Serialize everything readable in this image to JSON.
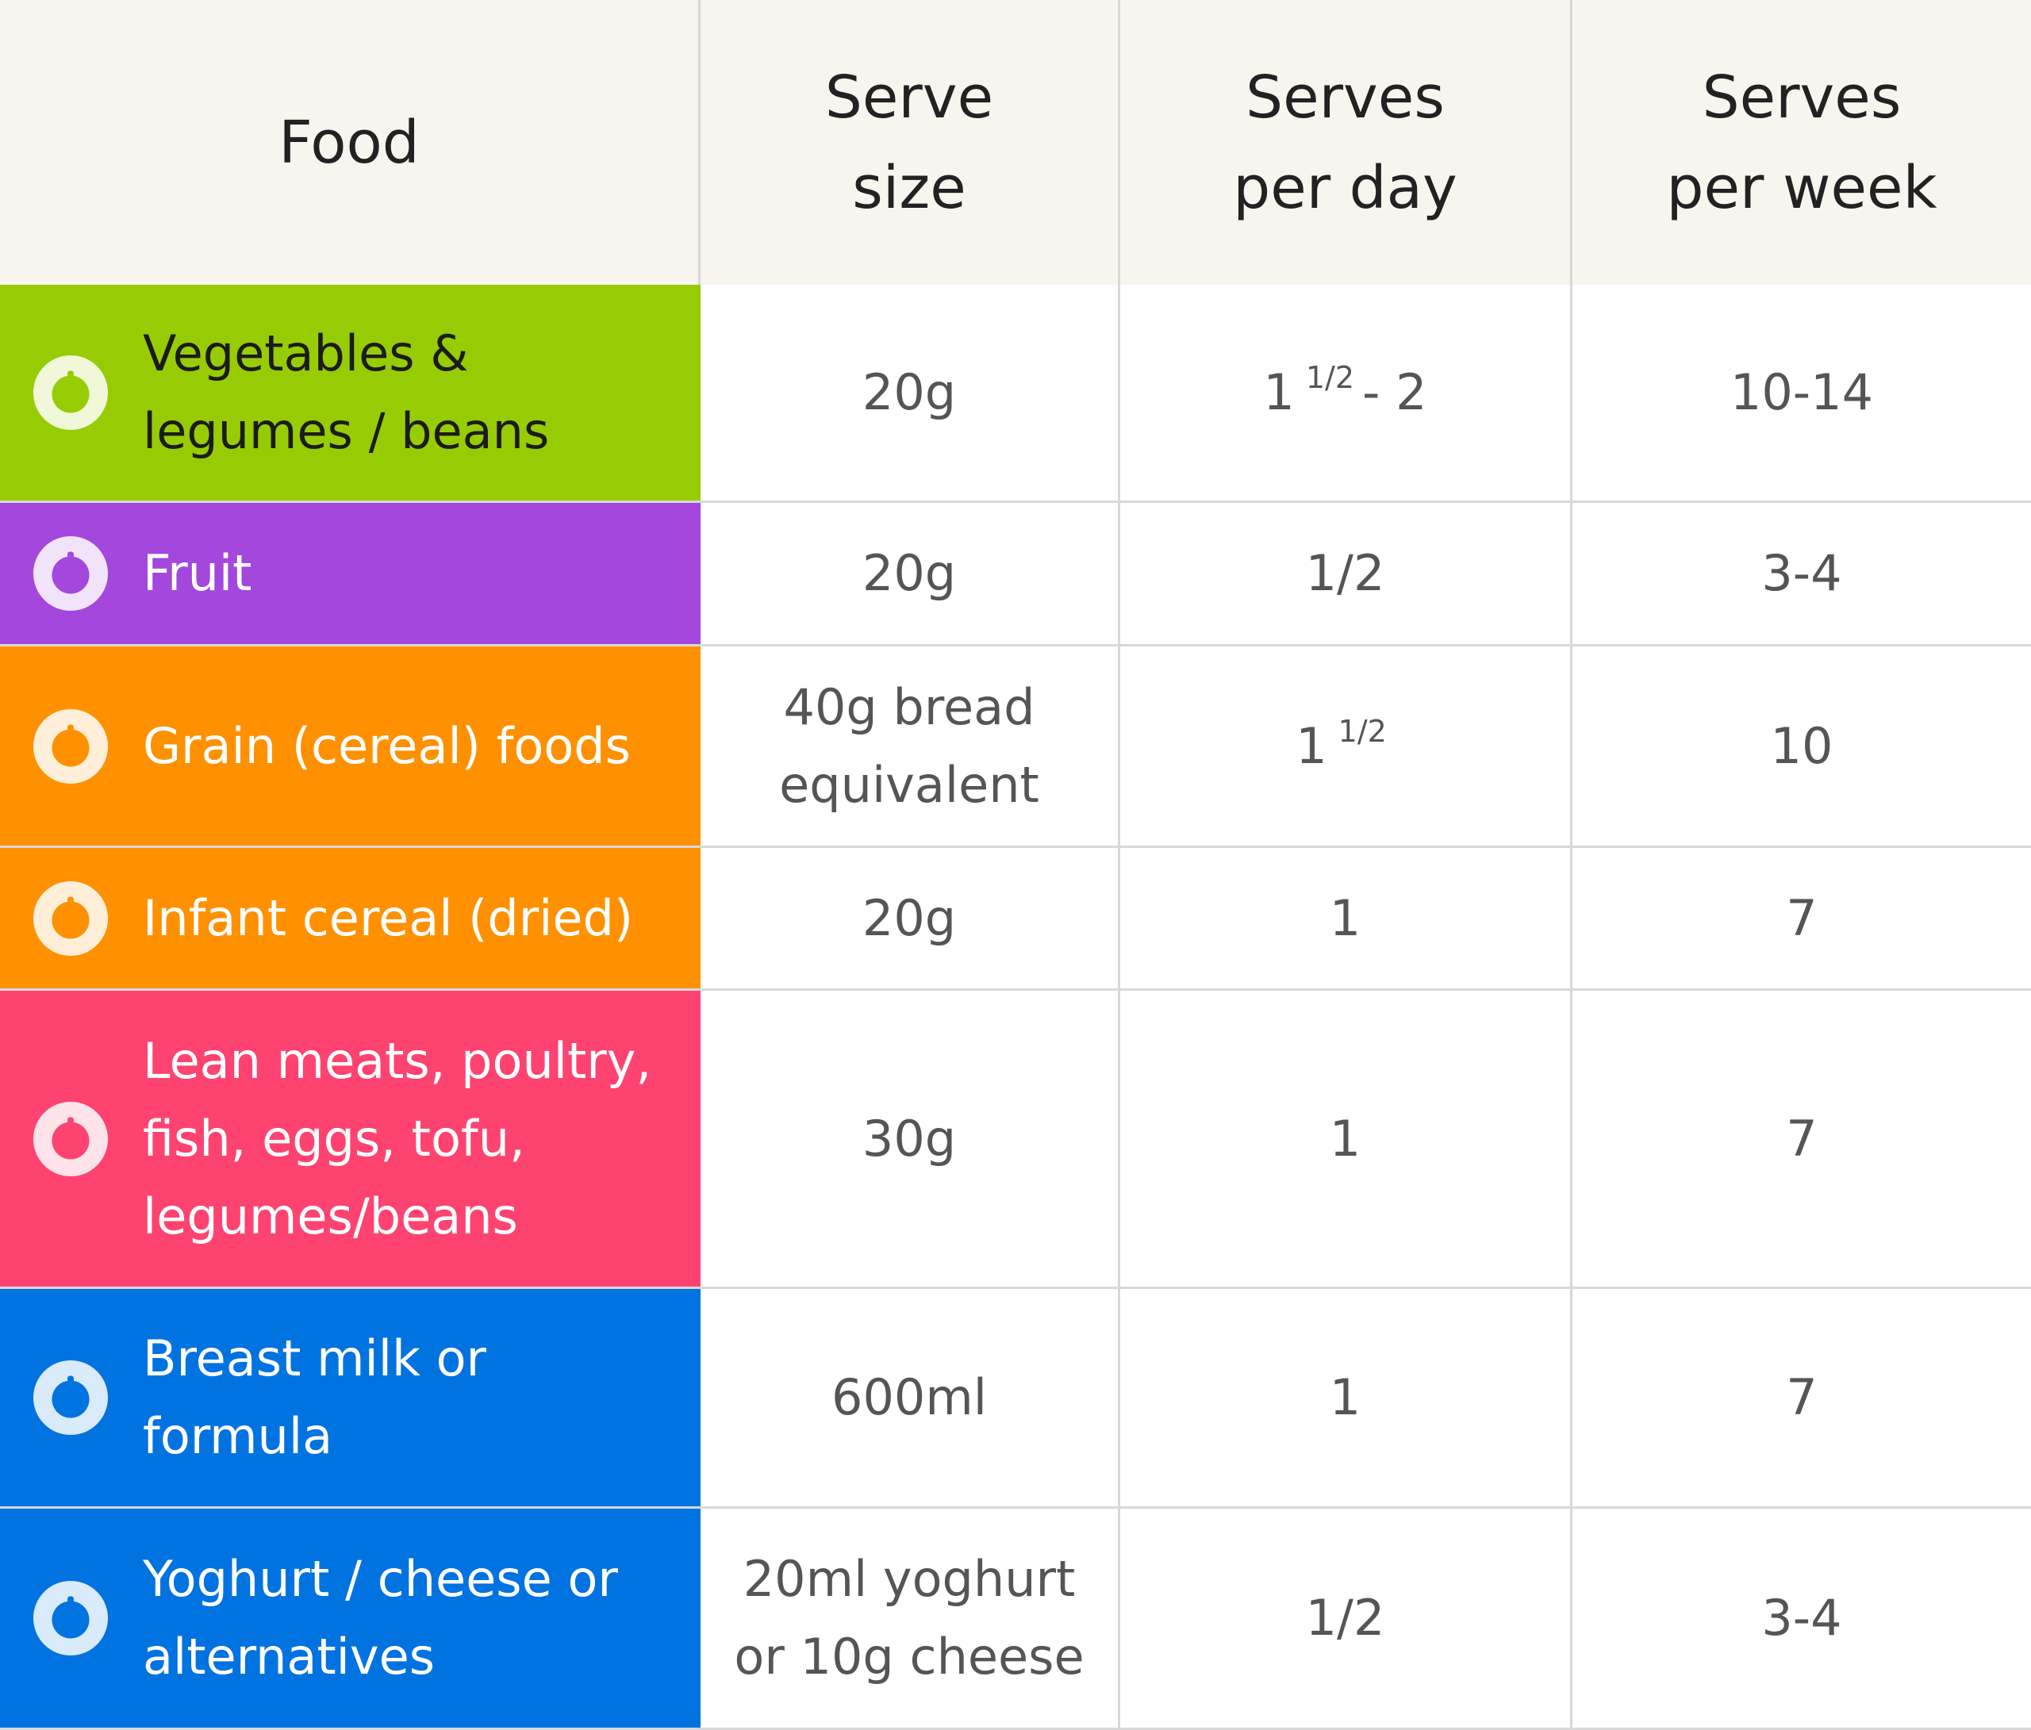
{
  "table": {
    "header": [
      "Food",
      "Serve size",
      "Serves per day",
      "Serves per week"
    ],
    "rows": [
      {
        "food": "Vegetables & legumes / beans",
        "color": "#97cc04",
        "serve_size": "20g",
        "per_day": {
          "whole": "1",
          "fraction": "1/2",
          "rest": "- 2"
        },
        "per_week": "10-14"
      },
      {
        "food": "Fruit",
        "color": "#a347dd",
        "serve_size": "20g",
        "per_day": "1/2",
        "per_week": "3-4"
      },
      {
        "food": "Grain (cereal) foods",
        "color": "#ff9100",
        "serve_size": "40g bread equivalent",
        "per_day": {
          "whole": "1",
          "fraction": "1/2"
        },
        "per_week": "10"
      },
      {
        "food": "Infant cereal (dried)",
        "color": "#ff9100",
        "serve_size": "20g",
        "per_day": "1",
        "per_week": "7"
      },
      {
        "food": "Lean meats, poultry, fish, eggs, tofu, legumes/beans",
        "color": "#ff4370",
        "serve_size": "30g",
        "per_day": "1",
        "per_week": "7"
      },
      {
        "food": "Breast milk or formula",
        "color": "#0073e0",
        "serve_size": "600ml",
        "per_day": "1",
        "per_week": "7"
      },
      {
        "food": "Yoghurt / cheese or alternatives",
        "color": "#0073e0",
        "serve_size": "20ml yoghurt or 10g cheese",
        "per_day": "1/2",
        "per_week": "3-4"
      }
    ]
  }
}
